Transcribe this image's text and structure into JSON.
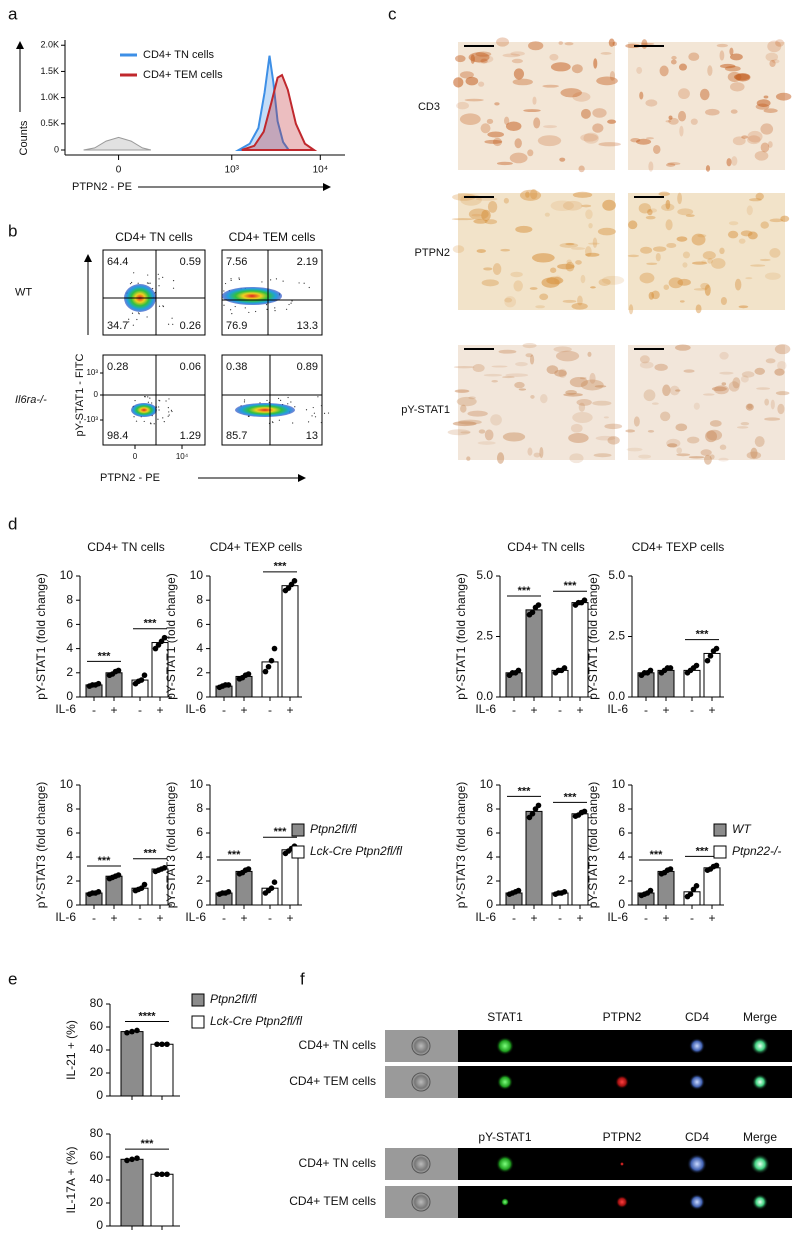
{
  "panel_labels": [
    "a",
    "b",
    "c",
    "d",
    "e",
    "f"
  ],
  "chart_data": [
    {
      "type": "area",
      "y_label": "Counts",
      "x_label": "PTPN2 - PE",
      "xscale": "biexponential",
      "xlim": [
        -200,
        19000
      ],
      "ylim": [
        0,
        2100
      ],
      "xticks": [
        0,
        {
          "value": 1000,
          "label": "10³"
        },
        {
          "value": 10000,
          "label": "10⁴"
        }
      ],
      "yticks": [
        0,
        {
          "value": 500,
          "label": "0.5K"
        },
        {
          "value": 1000,
          "label": "1.0K"
        },
        {
          "value": 1500,
          "label": "1.5K"
        },
        {
          "value": 2000,
          "label": "2.0K"
        }
      ],
      "series": [
        {
          "color": "#9a9a9a",
          "x": [
            -110,
            -70,
            -35,
            0,
            35,
            70,
            100
          ],
          "values": [
            0,
            40,
            170,
            240,
            170,
            40,
            0
          ]
        },
        {
          "name": "CD4+ TN cells",
          "color": "#3d8fe6",
          "x": [
            1200,
            1600,
            2000,
            2350,
            2670,
            2950,
            3300,
            3800,
            4400
          ],
          "values": [
            0,
            120,
            420,
            1100,
            1800,
            1300,
            550,
            150,
            0
          ]
        },
        {
          "name": "CD4+ TEM cells",
          "color": "#c0282d",
          "x": [
            1300,
            1800,
            2300,
            2800,
            3300,
            3700,
            4300,
            5300,
            6700,
            8500
          ],
          "values": [
            0,
            80,
            350,
            900,
            1380,
            1430,
            1150,
            500,
            120,
            0
          ]
        }
      ]
    },
    {
      "type": "bar",
      "title": "CD4+ TN cells",
      "y_label": "pY-STAT1 (fold change)",
      "x_label": "IL-6",
      "categories": [
        "-",
        "+",
        "-",
        "+"
      ],
      "ylim": [
        0,
        10
      ],
      "yticks": [
        0,
        2,
        4,
        6,
        8,
        10
      ],
      "significance": [
        "***",
        "***"
      ],
      "series": [
        {
          "name": "Ptpn2fl/fl",
          "color": "#8c8c8c",
          "values": [
            1.0,
            2.0,
            null,
            null
          ],
          "points": [
            [
              0.9,
              1.0,
              1.0,
              1.1
            ],
            [
              1.8,
              1.9,
              2.1,
              2.2
            ],
            null,
            null
          ]
        },
        {
          "name": "Lck-Cre Ptpn2fl/fl",
          "color": "#ffffff",
          "values": [
            null,
            null,
            1.4,
            4.5
          ],
          "points": [
            null,
            null,
            [
              1.1,
              1.3,
              1.4,
              1.8
            ],
            [
              4.0,
              4.3,
              4.6,
              4.9
            ]
          ]
        }
      ]
    },
    {
      "type": "bar",
      "title": "CD4+ TEXP cells",
      "y_label": "pY-STAT1 (fold change)",
      "x_label": "IL-6",
      "categories": [
        "-",
        "+",
        "-",
        "+"
      ],
      "ylim": [
        0,
        10
      ],
      "yticks": [
        0,
        2,
        4,
        6,
        8,
        10
      ],
      "significance": [
        null,
        "***"
      ],
      "series": [
        {
          "name": "Ptpn2fl/fl",
          "color": "#8c8c8c",
          "values": [
            0.9,
            1.7,
            null,
            null
          ],
          "points": [
            [
              0.8,
              0.9,
              1.0,
              1.0
            ],
            [
              1.5,
              1.6,
              1.8,
              1.9
            ],
            null,
            null
          ]
        },
        {
          "name": "Lck-Cre Ptpn2fl/fl",
          "color": "#ffffff",
          "values": [
            null,
            null,
            2.9,
            9.2
          ],
          "points": [
            null,
            null,
            [
              2.1,
              2.5,
              3.0,
              4.0
            ],
            [
              8.8,
              9.0,
              9.3,
              9.6
            ]
          ]
        }
      ]
    },
    {
      "type": "bar",
      "y_label": "pY-STAT3 (fold change)",
      "x_label": "IL-6",
      "categories": [
        "-",
        "+",
        "-",
        "+"
      ],
      "ylim": [
        0,
        10
      ],
      "yticks": [
        0,
        2,
        4,
        6,
        8,
        10
      ],
      "significance": [
        "***",
        "***"
      ],
      "series": [
        {
          "name": "Ptpn2fl/fl",
          "color": "#8c8c8c",
          "values": [
            1.0,
            2.4,
            null,
            null
          ],
          "points": [
            [
              0.9,
              1.0,
              1.0,
              1.1
            ],
            [
              2.2,
              2.3,
              2.4,
              2.5
            ],
            null,
            null
          ]
        },
        {
          "name": "Lck-Cre Ptpn2fl/fl",
          "color": "#ffffff",
          "values": [
            null,
            null,
            1.4,
            3.0
          ],
          "points": [
            null,
            null,
            [
              1.2,
              1.3,
              1.4,
              1.7
            ],
            [
              2.8,
              2.9,
              3.0,
              3.1
            ]
          ]
        }
      ]
    },
    {
      "type": "bar",
      "y_label": "pY-STAT3 (fold change)",
      "x_label": "IL-6",
      "categories": [
        "-",
        "+",
        "-",
        "+"
      ],
      "ylim": [
        0,
        10
      ],
      "yticks": [
        0,
        2,
        4,
        6,
        8,
        10
      ],
      "significance": [
        "***",
        "***"
      ],
      "legend": true,
      "series": [
        {
          "name": "Ptpn2fl/fl",
          "color": "#8c8c8c",
          "values": [
            1.0,
            2.8,
            null,
            null
          ],
          "points": [
            [
              0.9,
              1.0,
              1.0,
              1.1
            ],
            [
              2.6,
              2.7,
              2.9,
              3.0
            ],
            null,
            null
          ]
        },
        {
          "name": "Lck-Cre Ptpn2fl/fl",
          "color": "#ffffff",
          "values": [
            null,
            null,
            1.4,
            4.6
          ],
          "points": [
            null,
            null,
            [
              1.0,
              1.2,
              1.4,
              1.9
            ],
            [
              4.3,
              4.5,
              4.7,
              4.9
            ]
          ]
        }
      ]
    },
    {
      "type": "bar",
      "title": "CD4+ TN cells",
      "y_label": "pY-STAT1 (fold change)",
      "x_label": "IL-6",
      "categories": [
        "-",
        "+",
        "-",
        "+"
      ],
      "ylim": [
        0,
        5
      ],
      "yticks": [
        {
          "value": 0,
          "label": "0.0"
        },
        2.5,
        {
          "value": 5,
          "label": "5.0"
        }
      ],
      "significance": [
        "***",
        "***"
      ],
      "series": [
        {
          "name": "WT",
          "color": "#8c8c8c",
          "values": [
            1.0,
            3.6,
            null,
            null
          ],
          "points": [
            [
              0.9,
              1.0,
              1.0,
              1.1
            ],
            [
              3.4,
              3.5,
              3.7,
              3.8
            ],
            null,
            null
          ]
        },
        {
          "name": "Ptpn22-/-",
          "color": "#ffffff",
          "values": [
            null,
            null,
            1.1,
            3.9
          ],
          "points": [
            null,
            null,
            [
              1.0,
              1.1,
              1.1,
              1.2
            ],
            [
              3.8,
              3.9,
              3.9,
              4.0
            ]
          ]
        }
      ]
    },
    {
      "type": "bar",
      "title": "CD4+ TEXP cells",
      "y_label": "pY-STAT1 (fold change)",
      "x_label": "IL-6",
      "categories": [
        "-",
        "+",
        "-",
        "+"
      ],
      "ylim": [
        0,
        5
      ],
      "yticks": [
        {
          "value": 0,
          "label": "0.0"
        },
        2.5,
        {
          "value": 5,
          "label": "5.0"
        }
      ],
      "significance": [
        null,
        "***"
      ],
      "series": [
        {
          "name": "WT",
          "color": "#8c8c8c",
          "values": [
            1.0,
            1.1,
            null,
            null
          ],
          "points": [
            [
              0.9,
              1.0,
              1.0,
              1.1
            ],
            [
              1.0,
              1.1,
              1.2,
              1.2
            ],
            null,
            null
          ]
        },
        {
          "name": "Ptpn22-/-",
          "color": "#ffffff",
          "values": [
            null,
            null,
            1.1,
            1.8
          ],
          "points": [
            null,
            null,
            [
              1.0,
              1.1,
              1.2,
              1.3
            ],
            [
              1.5,
              1.7,
              1.9,
              2.0
            ]
          ]
        }
      ]
    },
    {
      "type": "bar",
      "y_label": "pY-STAT3 (fold change)",
      "x_label": "IL-6",
      "categories": [
        "-",
        "+",
        "-",
        "+"
      ],
      "ylim": [
        0,
        10
      ],
      "yticks": [
        0,
        2,
        4,
        6,
        8,
        10
      ],
      "significance": [
        "***",
        "***"
      ],
      "series": [
        {
          "name": "WT",
          "color": "#8c8c8c",
          "values": [
            1.0,
            7.8,
            null,
            null
          ],
          "points": [
            [
              0.9,
              1.0,
              1.1,
              1.2
            ],
            [
              7.3,
              7.6,
              8.0,
              8.3
            ],
            null,
            null
          ]
        },
        {
          "name": "Ptpn22-/-",
          "color": "#ffffff",
          "values": [
            null,
            null,
            1.0,
            7.6
          ],
          "points": [
            null,
            null,
            [
              0.9,
              1.0,
              1.0,
              1.1
            ],
            [
              7.4,
              7.5,
              7.7,
              7.8
            ]
          ]
        }
      ]
    },
    {
      "type": "bar",
      "y_label": "pY-STAT3 (fold change)",
      "x_label": "IL-6",
      "categories": [
        "-",
        "+",
        "-",
        "+"
      ],
      "ylim": [
        0,
        10
      ],
      "yticks": [
        0,
        2,
        4,
        6,
        8,
        10
      ],
      "significance": [
        "***",
        "***"
      ],
      "legend": true,
      "series": [
        {
          "name": "WT",
          "color": "#8c8c8c",
          "values": [
            1.0,
            2.8,
            null,
            null
          ],
          "points": [
            [
              0.8,
              0.9,
              1.0,
              1.2
            ],
            [
              2.6,
              2.7,
              2.9,
              3.0
            ],
            null,
            null
          ]
        },
        {
          "name": "Ptpn22-/-",
          "color": "#ffffff",
          "values": [
            null,
            null,
            1.1,
            3.1
          ],
          "points": [
            null,
            null,
            [
              0.7,
              0.9,
              1.3,
              1.6
            ],
            [
              2.9,
              3.0,
              3.2,
              3.3
            ]
          ]
        }
      ]
    },
    {
      "type": "bar",
      "y_label": "IL-21 + (%)",
      "categories": [
        null,
        null
      ],
      "ylim": [
        0,
        80
      ],
      "yticks": [
        0,
        20,
        40,
        60,
        80
      ],
      "significance": [
        "****"
      ],
      "legend": true,
      "series": [
        {
          "name": "Ptpn2fl/fl",
          "color": "#8c8c8c",
          "values": [
            56,
            null
          ],
          "points": [
            [
              55,
              56,
              57
            ],
            null
          ]
        },
        {
          "name": "Lck-Cre Ptpn2fl/fl",
          "color": "#ffffff",
          "values": [
            null,
            45
          ],
          "points": [
            null,
            [
              45,
              45,
              45
            ]
          ]
        }
      ]
    },
    {
      "type": "bar",
      "y_label": "IL-17A + (%)",
      "categories": [
        null,
        null
      ],
      "ylim": [
        0,
        80
      ],
      "yticks": [
        0,
        20,
        40,
        60,
        80
      ],
      "significance": [
        "***"
      ],
      "series": [
        {
          "name": "Ptpn2fl/fl",
          "color": "#8c8c8c",
          "values": [
            58,
            null
          ],
          "points": [
            [
              57,
              58,
              59
            ],
            null
          ]
        },
        {
          "name": "Lck-Cre Ptpn2fl/fl",
          "color": "#ffffff",
          "values": [
            null,
            45
          ],
          "points": [
            null,
            [
              45,
              45,
              45
            ]
          ]
        }
      ]
    }
  ],
  "flow": {
    "columns": [
      "CD4+ TN cells",
      "CD4+ TEM cells"
    ],
    "rows": [
      "WT",
      "Il6ra-/-"
    ],
    "quadrants": [
      [
        [
          64.4,
          0.59,
          34.7,
          0.26
        ],
        [
          7.56,
          2.19,
          76.9,
          13.3
        ]
      ],
      [
        [
          0.28,
          0.06,
          98.4,
          1.29
        ],
        [
          0.38,
          0.89,
          85.7,
          13
        ]
      ]
    ],
    "y_label": "pY-STAT1 - FITC",
    "x_label": "PTPN2 - PE",
    "yticks": [
      {
        "value": 1000,
        "label": "10³"
      },
      0,
      {
        "value": -1000,
        "label": "-10³"
      }
    ],
    "xticks": [
      0,
      {
        "value": 10000,
        "label": "10⁴"
      }
    ]
  },
  "ihc": {
    "rows": [
      "CD3",
      "PTPN2",
      "pY-STAT1"
    ]
  },
  "imaging": {
    "blocks": [
      {
        "headers": [
          "STAT1",
          "PTPN2",
          "CD4",
          "Merge"
        ],
        "rows": [
          "CD4+ TN cells",
          "CD4+ TEM cells"
        ]
      },
      {
        "headers": [
          "pY-STAT1",
          "PTPN2",
          "CD4",
          "Merge"
        ],
        "rows": [
          "CD4+ TN cells",
          "CD4+ TEM cells"
        ]
      }
    ]
  }
}
